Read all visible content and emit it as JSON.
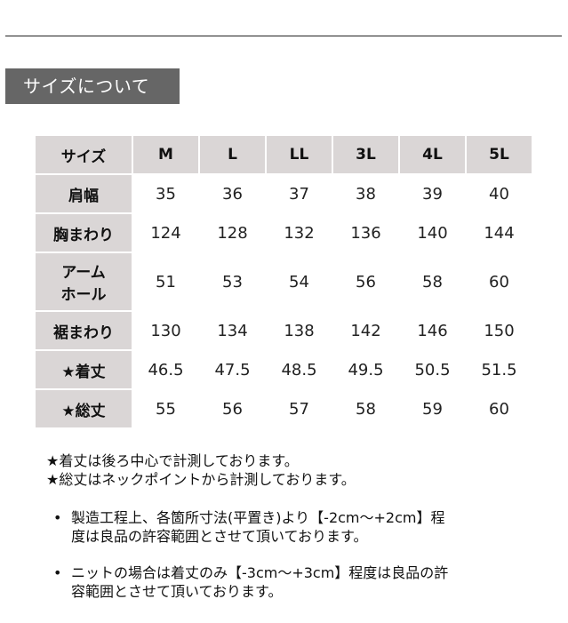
{
  "title": "サイズについて",
  "table": {
    "header": [
      "サイズ",
      "M",
      "L",
      "LL",
      "3L",
      "4L",
      "5L"
    ],
    "rows": [
      {
        "label": "肩幅",
        "values": [
          "35",
          "36",
          "37",
          "38",
          "39",
          "40"
        ]
      },
      {
        "label": "胸まわり",
        "values": [
          "124",
          "128",
          "132",
          "136",
          "140",
          "144"
        ]
      },
      {
        "label": "アーム\nホール",
        "label_lines": [
          "アーム",
          "ホール"
        ],
        "values": [
          "51",
          "53",
          "54",
          "56",
          "58",
          "60"
        ]
      },
      {
        "label": "裾まわり",
        "values": [
          "130",
          "134",
          "138",
          "142",
          "146",
          "150"
        ]
      },
      {
        "label": "★着丈",
        "values": [
          "46.5",
          "47.5",
          "48.5",
          "49.5",
          "50.5",
          "51.5"
        ]
      },
      {
        "label": "★総丈",
        "values": [
          "55",
          "56",
          "57",
          "58",
          "59",
          "60"
        ]
      }
    ]
  },
  "notes": [
    "★着丈は後ろ中心で計測しております。",
    "★総丈はネックポイントから計測しております。"
  ],
  "bullets": [
    {
      "lines": [
        "製造工程上、各箇所寸法(平置き)より【-2cm～+2cm】程",
        "度は良品の許容範囲とさせて頂いております。"
      ]
    },
    {
      "lines": [
        "ニットの場合は着丈のみ【-3cm～+3cm】程度は良品の許",
        "容範囲とさせて頂いております。"
      ]
    }
  ]
}
